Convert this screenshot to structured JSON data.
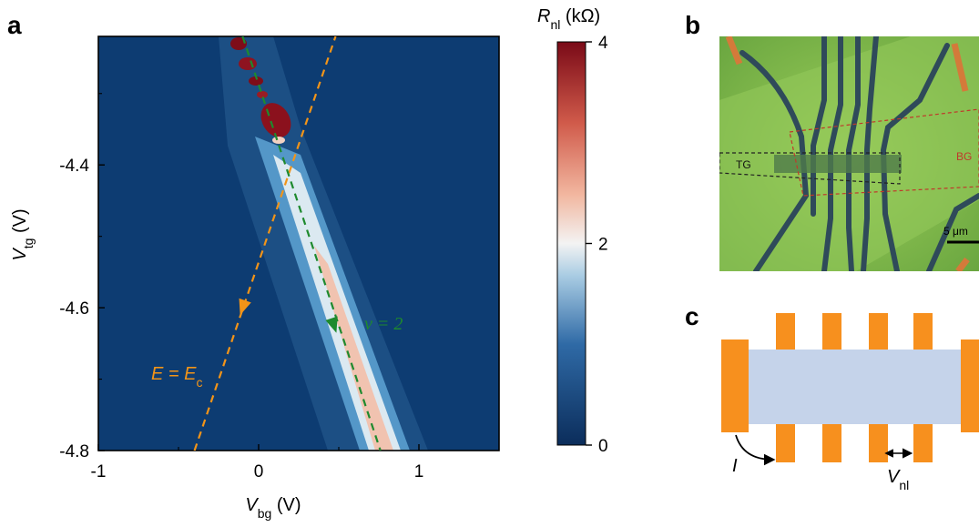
{
  "panel_labels": {
    "a": "a",
    "b": "b",
    "c": "c"
  },
  "panel_a": {
    "chart_data": {
      "type": "heatmap",
      "xlabel_main": "V",
      "xlabel_sub": "bg",
      "xlabel_unit": " (V)",
      "ylabel_main": "V",
      "ylabel_sub": "tg",
      "ylabel_unit": " (V)",
      "xlim": [
        -1,
        1.5
      ],
      "ylim": [
        -4.8,
        -4.22
      ],
      "x_ticks": [
        -1,
        0,
        1
      ],
      "x_tick_labels": [
        "-1",
        "0",
        "1"
      ],
      "y_ticks": [
        -4.8,
        -4.6,
        -4.4
      ],
      "y_tick_labels": [
        "-4.8",
        "-4.6",
        "-4.4"
      ],
      "colorbar": {
        "label_main": "R",
        "label_sub": "nl",
        "label_unit": " (kΩ)",
        "range": [
          0,
          4
        ],
        "ticks": [
          0,
          2,
          4
        ],
        "tick_labels": [
          "0",
          "2",
          "4"
        ],
        "colors": [
          "#0b2d5b",
          "#2f6aa6",
          "#a9cce3",
          "#f3f3f3",
          "#f2b7a0",
          "#d05a4a",
          "#7a0a17"
        ]
      },
      "lines": [
        {
          "label_main": "E = E",
          "label_sub": "c",
          "color": "#f29418",
          "style": "dashed",
          "x": [
            -0.4,
            0.48
          ],
          "y": [
            -4.8,
            -4.22
          ],
          "arrow_at": [
            -0.1,
            -4.6
          ]
        },
        {
          "label": "ν = 2",
          "color": "#1e8a2e",
          "style": "dashed",
          "x": [
            -0.1,
            0.76
          ],
          "y": [
            -4.22,
            -4.8
          ],
          "arrow_at": [
            0.47,
            -4.625
          ]
        }
      ]
    }
  },
  "panel_b": {
    "labels": {
      "tg": "TG",
      "bg": "BG",
      "scale": "5 μm"
    }
  },
  "panel_c": {
    "labels": {
      "current_main": "I",
      "voltage_main": "V",
      "voltage_sub": "nl"
    },
    "colors": {
      "contact": "#f7901e",
      "channel": "#c5d3ea"
    }
  }
}
